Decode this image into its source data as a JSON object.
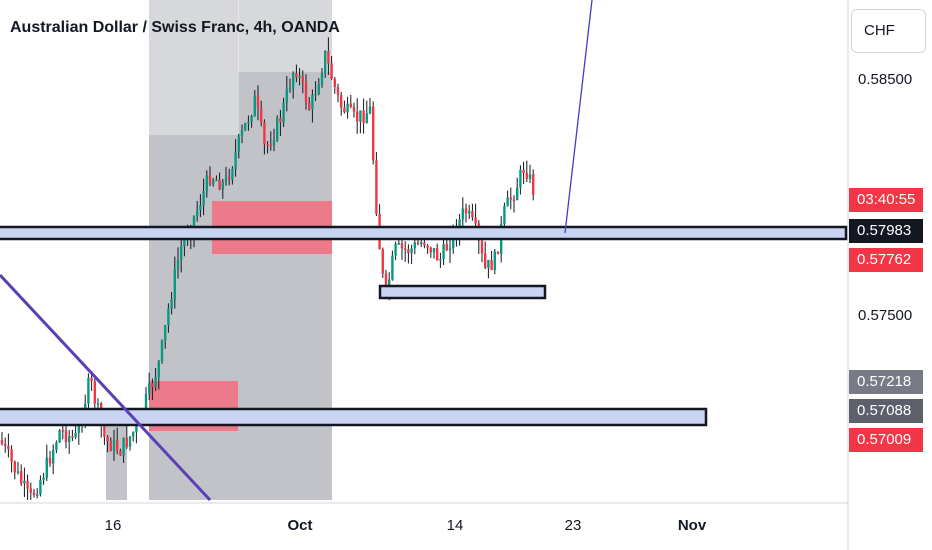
{
  "chart_data": {
    "type": "candlestick",
    "title": "Australian Dollar / Swiss Franc, 4h, OANDA",
    "currency": "CHF",
    "y_ticks": [
      "0.58500",
      "0.57500"
    ],
    "x_ticks": [
      "16",
      "Oct",
      "14",
      "23",
      "Nov"
    ],
    "price_badges": [
      {
        "label": "03:40:55",
        "color": "#f23645"
      },
      {
        "label": "0.57983",
        "color": "#131722"
      },
      {
        "label": "0.57762",
        "color": "#f23645"
      },
      {
        "label": "0.57218",
        "color": "#787b86"
      },
      {
        "label": "0.57088",
        "color": "#5d606b"
      },
      {
        "label": "0.57009",
        "color": "#f23645"
      }
    ],
    "colors": {
      "up": "#089981",
      "down": "#f23645",
      "zone_fill": "#c8d4f2",
      "trendline": "#5b3fb5",
      "projection": "#3f3fc7"
    }
  }
}
